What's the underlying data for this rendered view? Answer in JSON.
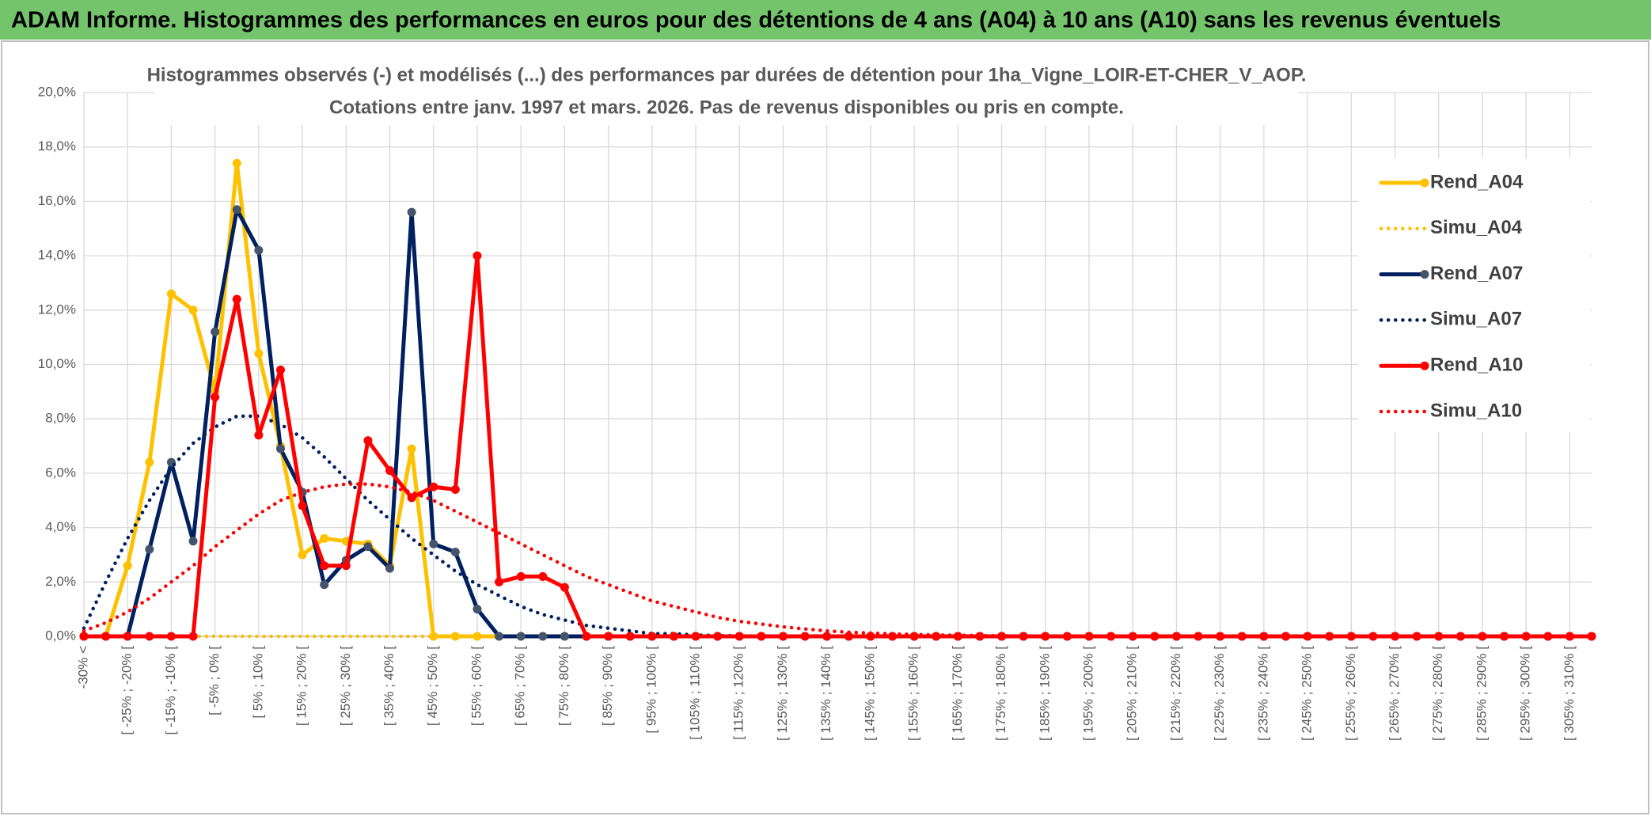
{
  "chart_data": {
    "type": "line",
    "title": "ADAM Informe. Histogrammes des performances en euros pour des détentions de 4 ans (A04) à 10 ans (A10) sans les revenus éventuels",
    "subtitle": [
      "Histogrammes observés (-) et modélisés (...) des performances par durées de détention pour 1ha_Vigne_LOIR-ET-CHER_V_AOP.",
      "Cotations entre janv. 1997 et mars. 2026. Pas de revenus disponibles ou pris en compte."
    ],
    "categories": [
      "-30% <",
      null,
      "[ -25% ; -20% [",
      null,
      "[ -15% ; -10% [",
      null,
      "[ -5% ; 0% [",
      null,
      "[ 5% ; 10% [",
      null,
      "[ 15% ; 20% [",
      null,
      "[ 25% ; 30% [",
      null,
      "[ 35% ; 40% [",
      null,
      "[ 45% ; 50% [",
      null,
      "[ 55% ; 60% [",
      null,
      "[ 65% ; 70% [",
      null,
      "[ 75% ; 80% [",
      null,
      "[ 85% ; 90% [",
      null,
      "[ 95% ; 100% [",
      null,
      "[ 105% ; 110% [",
      null,
      "[ 115% ; 120% [",
      null,
      "[ 125% ; 130% [",
      null,
      "[ 135% ; 140% [",
      null,
      "[ 145% ; 150% [",
      null,
      "[ 155% ; 160% [",
      null,
      "[ 165% ; 170% [",
      null,
      "[ 175% ; 180% [",
      null,
      "[ 185% ; 190% [",
      null,
      "[ 195% ; 200% [",
      null,
      "[ 205% ; 210% [",
      null,
      "[ 215% ; 220% [",
      null,
      "[ 225% ; 230% [",
      null,
      "[ 235% ; 240% [",
      null,
      "[ 245% ; 250% [",
      null,
      "[ 255% ; 260% [",
      null,
      "[ 265% ; 270% [",
      null,
      "[ 275% ; 280% [",
      null,
      "[ 285% ; 290% [",
      null,
      "[ 295% ; 300% [",
      null,
      "[ 305% ; 310% [",
      null
    ],
    "series": [
      {
        "name": "Rend_A04",
        "color": "#ffc000",
        "style": "solid",
        "values": [
          0,
          0,
          2.6,
          6.4,
          12.6,
          12.0,
          9.0,
          17.4,
          10.4,
          7.0,
          3.0,
          3.6,
          3.5,
          3.4,
          2.6,
          6.9,
          0,
          0,
          0,
          0,
          0,
          0,
          0,
          0,
          0,
          0,
          0,
          0,
          0,
          0,
          0,
          0,
          0,
          0,
          0,
          0,
          0,
          0,
          0,
          0,
          0,
          0,
          0,
          0,
          0,
          0,
          0,
          0,
          0,
          0,
          0,
          0,
          0,
          0,
          0,
          0,
          0,
          0,
          0,
          0,
          0,
          0,
          0,
          0,
          0,
          0,
          0,
          0,
          0,
          0
        ]
      },
      {
        "name": "Simu_A04",
        "color": "#ffc000",
        "style": "dotted",
        "values": [
          0,
          0,
          0,
          0,
          0,
          0,
          0,
          0,
          0,
          0,
          0,
          0,
          0,
          0,
          0,
          0,
          0,
          0,
          0,
          0,
          0,
          0,
          0,
          0,
          0,
          0,
          0,
          0,
          0,
          0,
          0,
          0,
          0,
          0,
          0,
          0,
          0,
          0,
          0,
          0,
          0,
          0,
          0,
          0,
          0,
          0,
          0,
          0,
          0,
          0,
          0,
          0,
          0,
          0,
          0,
          0,
          0,
          0,
          0,
          0,
          0,
          0,
          0,
          0,
          0,
          0,
          0,
          0,
          0,
          0
        ]
      },
      {
        "name": "Rend_A07",
        "color": "#002060",
        "marker": "#44546a",
        "style": "solid",
        "values": [
          0,
          0,
          0,
          3.2,
          6.4,
          3.5,
          11.2,
          15.7,
          14.2,
          6.9,
          5.3,
          1.9,
          2.8,
          3.3,
          2.5,
          15.6,
          3.4,
          3.1,
          1.0,
          0,
          0,
          0,
          0,
          0,
          0,
          0,
          0,
          0,
          0,
          0,
          0,
          0,
          0,
          0,
          0,
          0,
          0,
          0,
          0,
          0,
          0,
          0,
          0,
          0,
          0,
          0,
          0,
          0,
          0,
          0,
          0,
          0,
          0,
          0,
          0,
          0,
          0,
          0,
          0,
          0,
          0,
          0,
          0,
          0,
          0,
          0,
          0,
          0,
          0,
          0
        ]
      },
      {
        "name": "Simu_A07",
        "color": "#002060",
        "style": "dotted",
        "values": [
          0.3,
          2.0,
          3.6,
          5.0,
          6.2,
          7.1,
          7.7,
          8.1,
          8.1,
          7.8,
          7.3,
          6.6,
          5.8,
          5.0,
          4.3,
          3.6,
          3.0,
          2.4,
          1.9,
          1.5,
          1.1,
          0.8,
          0.6,
          0.4,
          0.3,
          0.2,
          0.1,
          0.1,
          0.05,
          0.03,
          0.02,
          0,
          0,
          0,
          0,
          0,
          0,
          0,
          0,
          0,
          0,
          0,
          0,
          0,
          0,
          0,
          0,
          0,
          0,
          0,
          0,
          0,
          0,
          0,
          0,
          0,
          0,
          0,
          0,
          0,
          0,
          0,
          0,
          0,
          0,
          0,
          0,
          0,
          0,
          0
        ]
      },
      {
        "name": "Rend_A10",
        "color": "#ff0000",
        "style": "solid",
        "values": [
          0,
          0,
          0,
          0,
          0,
          0,
          8.8,
          12.4,
          7.4,
          9.8,
          4.8,
          2.6,
          2.6,
          7.2,
          6.1,
          5.1,
          5.5,
          5.4,
          14.0,
          2.0,
          2.2,
          2.2,
          1.8,
          0,
          0,
          0,
          0,
          0,
          0,
          0,
          0,
          0,
          0,
          0,
          0,
          0,
          0,
          0,
          0,
          0,
          0,
          0,
          0,
          0,
          0,
          0,
          0,
          0,
          0,
          0,
          0,
          0,
          0,
          0,
          0,
          0,
          0,
          0,
          0,
          0,
          0,
          0,
          0,
          0,
          0,
          0,
          0,
          0,
          0,
          0
        ]
      },
      {
        "name": "Simu_A10",
        "color": "#ff0000",
        "style": "dotted",
        "values": [
          0.2,
          0.5,
          0.9,
          1.4,
          2.0,
          2.6,
          3.3,
          3.9,
          4.5,
          5.0,
          5.3,
          5.5,
          5.6,
          5.6,
          5.5,
          5.3,
          5.0,
          4.6,
          4.2,
          3.8,
          3.4,
          3.0,
          2.6,
          2.2,
          1.9,
          1.6,
          1.3,
          1.1,
          0.9,
          0.7,
          0.55,
          0.45,
          0.35,
          0.27,
          0.2,
          0.15,
          0.12,
          0.09,
          0.07,
          0.05,
          0.04,
          0.03,
          0.02,
          0.01,
          0,
          0,
          0,
          0,
          0,
          0,
          0,
          0,
          0,
          0,
          0,
          0,
          0,
          0,
          0,
          0,
          0,
          0,
          0,
          0,
          0,
          0,
          0,
          0,
          0,
          0
        ]
      }
    ],
    "ylim": [
      0,
      20
    ],
    "yticks": [
      {
        "value": 0,
        "label": "0,0%"
      },
      {
        "value": 2,
        "label": "2,0%"
      },
      {
        "value": 4,
        "label": "4,0%"
      },
      {
        "value": 6,
        "label": "6,0%"
      },
      {
        "value": 8,
        "label": "8,0%"
      },
      {
        "value": 10,
        "label": "10,0%"
      },
      {
        "value": 12,
        "label": "12,0%"
      },
      {
        "value": 14,
        "label": "14,0%"
      },
      {
        "value": 16,
        "label": "16,0%"
      },
      {
        "value": 18,
        "label": "18,0%"
      },
      {
        "value": 20,
        "label": "20,0%"
      }
    ],
    "grid": true,
    "legend": "right"
  }
}
